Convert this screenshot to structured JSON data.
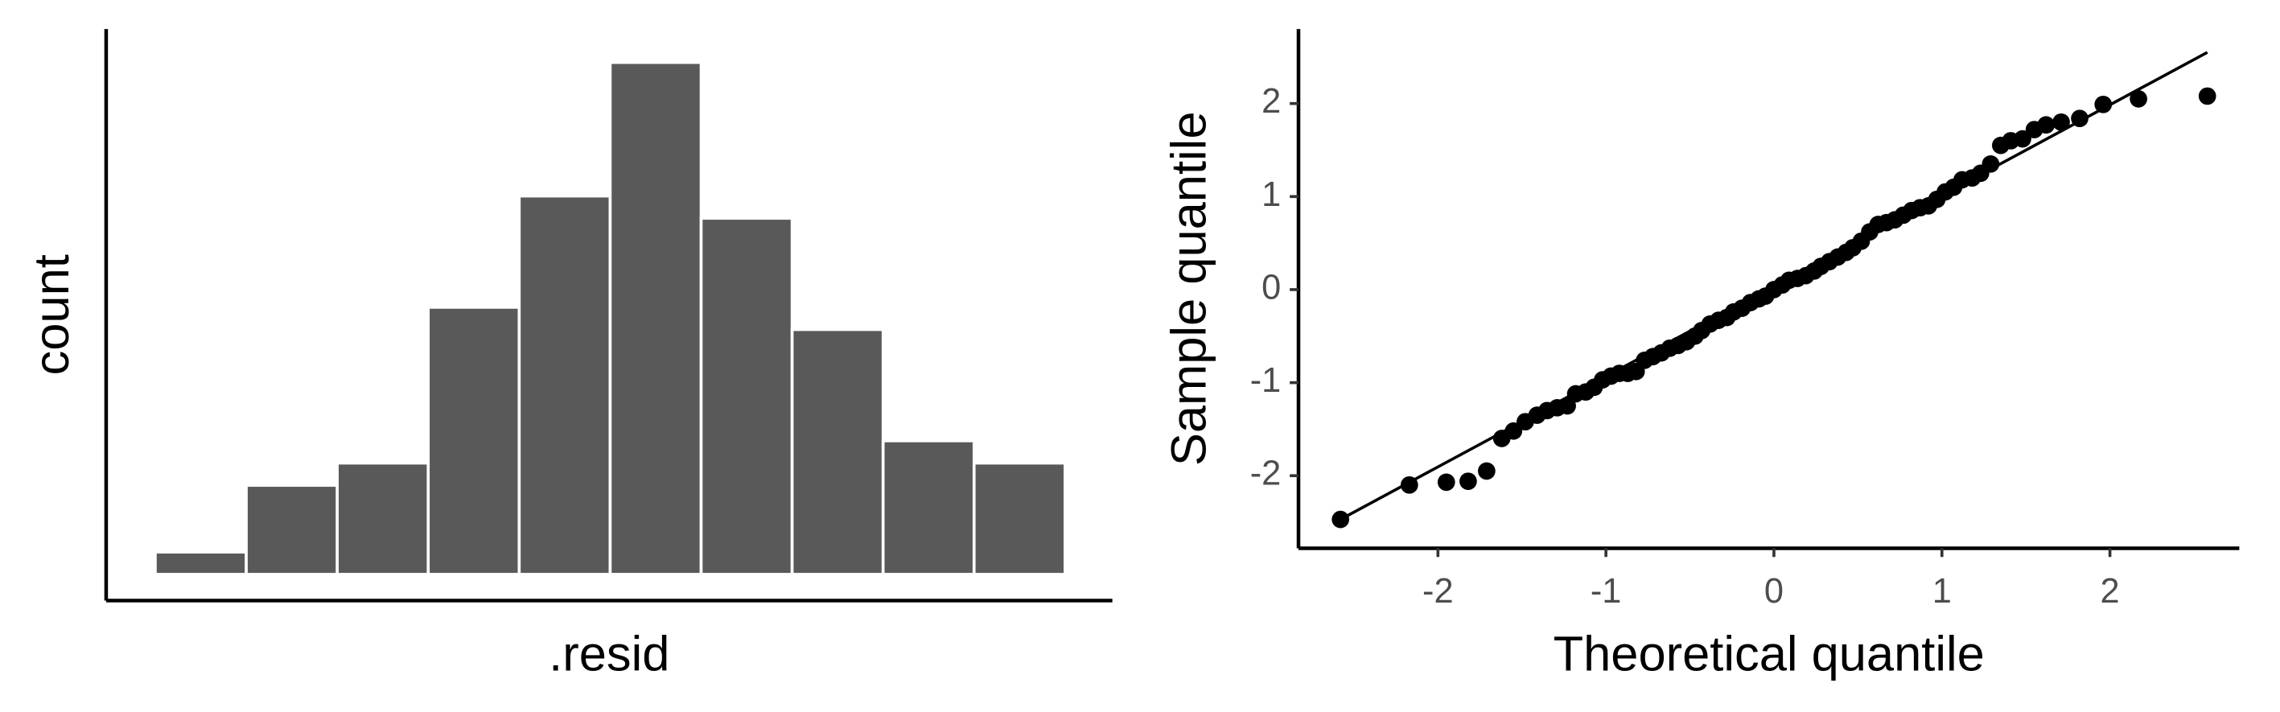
{
  "chart_data": [
    {
      "type": "histogram",
      "xlabel": ".resid",
      "ylabel": "count",
      "color": "#595959",
      "bins": [
        -2.75,
        -2.25,
        -1.75,
        -1.25,
        -0.75,
        -0.25,
        0.25,
        0.75,
        1.25,
        1.75,
        2.25
      ],
      "values": [
        1,
        4,
        5,
        12,
        17,
        23,
        16,
        11,
        6,
        5
      ],
      "xlim": [
        -3.02,
        2.51
      ],
      "ylim": [
        -1.18,
        24.5
      ]
    },
    {
      "type": "scatter",
      "xlabel": "Theoretical quantile",
      "ylabel": "Sample quantile",
      "color": "#000000",
      "x": [
        -2.58,
        -2.17,
        -1.95,
        -1.82,
        -1.71,
        -1.62,
        -1.55,
        -1.48,
        -1.41,
        -1.35,
        -1.29,
        -1.23,
        -1.18,
        -1.12,
        -1.07,
        -1.02,
        -0.97,
        -0.92,
        -0.87,
        -0.82,
        -0.77,
        -0.72,
        -0.67,
        -0.62,
        -0.57,
        -0.52,
        -0.47,
        -0.43,
        -0.38,
        -0.33,
        -0.28,
        -0.24,
        -0.19,
        -0.14,
        -0.09,
        -0.05,
        0,
        0.05,
        0.09,
        0.14,
        0.19,
        0.24,
        0.28,
        0.33,
        0.38,
        0.43,
        0.47,
        0.52,
        0.57,
        0.62,
        0.67,
        0.72,
        0.77,
        0.82,
        0.87,
        0.92,
        0.97,
        1.02,
        1.07,
        1.12,
        1.18,
        1.23,
        1.29,
        1.35,
        1.41,
        1.48,
        1.55,
        1.62,
        1.71,
        1.82,
        1.96,
        2.17,
        2.58
      ],
      "y": [
        -2.47,
        -2.1,
        -2.07,
        -2.06,
        -1.95,
        -1.6,
        -1.52,
        -1.42,
        -1.35,
        -1.3,
        -1.27,
        -1.25,
        -1.12,
        -1.1,
        -1.05,
        -0.97,
        -0.93,
        -0.9,
        -0.9,
        -0.88,
        -0.76,
        -0.72,
        -0.68,
        -0.63,
        -0.6,
        -0.56,
        -0.5,
        -0.44,
        -0.37,
        -0.33,
        -0.3,
        -0.24,
        -0.2,
        -0.14,
        -0.1,
        -0.07,
        0,
        0.05,
        0.1,
        0.12,
        0.15,
        0.2,
        0.25,
        0.3,
        0.35,
        0.4,
        0.45,
        0.52,
        0.62,
        0.7,
        0.72,
        0.75,
        0.8,
        0.85,
        0.88,
        0.9,
        0.97,
        1.05,
        1.1,
        1.18,
        1.2,
        1.25,
        1.35,
        1.55,
        1.6,
        1.62,
        1.72,
        1.77,
        1.8,
        1.84,
        1.99,
        2.05,
        2.08
      ],
      "line": {
        "x": [
          -2.58,
          2.58
        ],
        "y": [
          -2.47,
          2.55
        ]
      },
      "xlim": [
        -2.83,
        2.77
      ],
      "ylim": [
        -2.78,
        2.8
      ],
      "xticks": [
        -2,
        -1,
        0,
        1,
        2
      ],
      "yticks": [
        -2,
        -1,
        0,
        1,
        2
      ]
    }
  ]
}
